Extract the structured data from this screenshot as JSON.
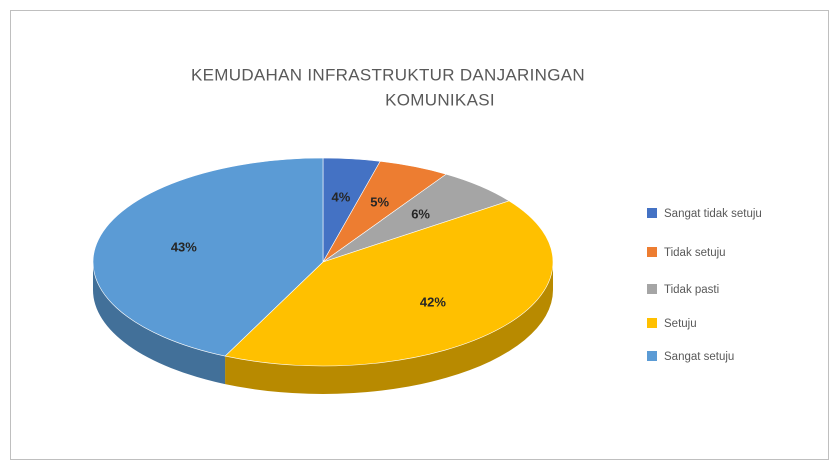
{
  "chart_data": {
    "type": "pie",
    "title": [
      "KEMUDAHAN INFRASTRUKTUR DANJARINGAN",
      "KOMUNIKASI"
    ],
    "categories": [
      "Sangat tidak setuju",
      "Tidak setuju",
      "Tidak pasti",
      "Setuju",
      "Sangat setuju"
    ],
    "values": [
      4,
      5,
      6,
      42,
      43
    ],
    "value_labels": [
      "4%",
      "5%",
      "6%",
      "42%",
      "43%"
    ],
    "colors": [
      "#4472c4",
      "#ed7d31",
      "#a5a5a5",
      "#ffc000",
      "#5b9bd5"
    ],
    "legend": "right"
  }
}
